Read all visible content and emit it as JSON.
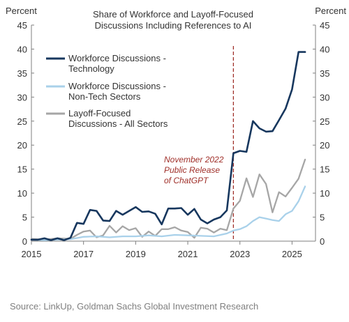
{
  "chart_data": {
    "type": "line",
    "title_lines": [
      "Share of Workforce and Layoff-Focused",
      "Discussions Including References to AI"
    ],
    "y_unit_left": "Percent",
    "y_unit_right": "Percent",
    "ylim": [
      0,
      45
    ],
    "y_ticks": [
      0,
      5,
      10,
      15,
      20,
      25,
      30,
      35,
      40,
      45
    ],
    "xlim": [
      2015.0,
      2025.9
    ],
    "x_ticks": [
      2015,
      2017,
      2019,
      2021,
      2023,
      2025
    ],
    "legend_position": "top-left",
    "series": [
      {
        "name_lines": [
          "Workforce Discussions -",
          "Technology"
        ],
        "color": "#17375e",
        "x": [
          2015.0,
          2015.25,
          2015.5,
          2015.75,
          2016.0,
          2016.25,
          2016.5,
          2016.75,
          2017.0,
          2017.25,
          2017.5,
          2017.75,
          2018.0,
          2018.25,
          2018.5,
          2018.75,
          2019.0,
          2019.25,
          2019.5,
          2019.75,
          2020.0,
          2020.25,
          2020.5,
          2020.75,
          2021.0,
          2021.25,
          2021.5,
          2021.75,
          2022.0,
          2022.25,
          2022.5,
          2022.75,
          2023.0,
          2023.25,
          2023.5,
          2023.75,
          2024.0,
          2024.25,
          2024.5,
          2024.75,
          2025.0,
          2025.25,
          2025.5
        ],
        "values": [
          0.3,
          0.3,
          0.6,
          0.2,
          0.6,
          0.2,
          0.7,
          3.8,
          3.6,
          6.5,
          6.3,
          4.3,
          4.2,
          6.3,
          5.5,
          6.3,
          7.1,
          6.1,
          6.2,
          5.7,
          3.5,
          6.8,
          6.8,
          6.9,
          5.5,
          6.7,
          4.5,
          3.7,
          4.5,
          5.0,
          6.4,
          18.3,
          18.8,
          18.6,
          25.0,
          23.5,
          22.8,
          22.9,
          25.2,
          27.6,
          31.6,
          39.4,
          39.4
        ]
      },
      {
        "name_lines": [
          "Workforce Discussions -",
          "Non-Tech Sectors"
        ],
        "color": "#a9d1ea",
        "x": [
          2015.0,
          2015.5,
          2016.0,
          2016.5,
          2017.0,
          2017.5,
          2018.0,
          2018.5,
          2019.0,
          2019.5,
          2020.0,
          2020.5,
          2021.0,
          2021.5,
          2022.0,
          2022.5,
          2022.75,
          2023.0,
          2023.25,
          2023.5,
          2023.75,
          2024.0,
          2024.25,
          2024.5,
          2024.75,
          2025.0,
          2025.25,
          2025.5
        ],
        "values": [
          0.3,
          0.2,
          0.3,
          0.4,
          0.9,
          1.0,
          0.8,
          1.0,
          1.0,
          1.2,
          1.0,
          1.3,
          1.2,
          1.1,
          1.0,
          1.6,
          2.2,
          2.5,
          3.1,
          4.2,
          5.0,
          4.7,
          4.4,
          4.2,
          5.6,
          6.3,
          8.3,
          11.4
        ]
      },
      {
        "name_lines": [
          "Layoff-Focused",
          "Discussions - All Sectors"
        ],
        "color": "#a6a6a6",
        "x": [
          2015.0,
          2015.5,
          2016.0,
          2016.5,
          2016.75,
          2017.0,
          2017.25,
          2017.5,
          2017.75,
          2018.0,
          2018.25,
          2018.5,
          2018.75,
          2019.0,
          2019.25,
          2019.5,
          2019.75,
          2020.0,
          2020.25,
          2020.5,
          2020.75,
          2021.0,
          2021.25,
          2021.5,
          2021.75,
          2022.0,
          2022.25,
          2022.5,
          2022.75,
          2023.0,
          2023.25,
          2023.5,
          2023.75,
          2024.0,
          2024.25,
          2024.5,
          2024.75,
          2025.0,
          2025.25,
          2025.5
        ],
        "values": [
          0.5,
          0.3,
          0.6,
          0.5,
          1.3,
          2.0,
          2.2,
          0.8,
          1.2,
          3.2,
          1.8,
          3.1,
          2.3,
          2.7,
          0.9,
          2.0,
          1.1,
          2.5,
          2.5,
          2.9,
          2.2,
          1.9,
          0.7,
          2.8,
          2.6,
          1.8,
          2.6,
          2.3,
          6.8,
          8.4,
          13.1,
          9.2,
          13.9,
          11.9,
          6.0,
          10.2,
          9.3,
          11.1,
          13.0,
          17.0
        ]
      }
    ],
    "annotation": {
      "x": 2022.75,
      "lines": [
        "November 2022",
        "Public Release",
        "of ChatGPT"
      ],
      "color": "#a0302a"
    }
  },
  "source": "Source: LinkUp, Goldman Sachs Global Investment Research"
}
